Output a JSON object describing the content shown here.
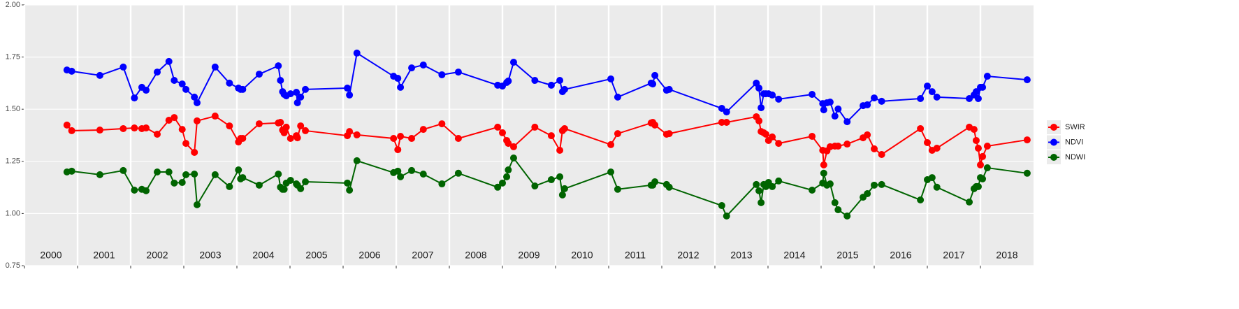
{
  "chart_data": {
    "type": "line",
    "legend": "right",
    "grid": true,
    "background": "#ebebeb",
    "x": [
      2000.8,
      2000.89,
      2001.42,
      2001.86,
      2002.07,
      2002.21,
      2002.29,
      2002.5,
      2002.72,
      2002.82,
      2002.97,
      2003.04,
      2003.2,
      2003.25,
      2003.59,
      2003.86,
      2004.03,
      2004.07,
      2004.11,
      2004.42,
      2004.78,
      2004.82,
      2004.86,
      2004.89,
      2004.93,
      2005.01,
      2005.12,
      2005.14,
      2005.2,
      2005.29,
      2006.08,
      2006.12,
      2006.26,
      2006.95,
      2007.03,
      2007.08,
      2007.29,
      2007.51,
      2007.86,
      2008.17,
      2008.91,
      2009.0,
      2009.08,
      2009.11,
      2009.21,
      2009.61,
      2009.92,
      2010.08,
      2010.13,
      2010.17,
      2011.04,
      2011.17,
      2011.8,
      2011.83,
      2011.87,
      2012.09,
      2012.14,
      2013.13,
      2013.22,
      2013.78,
      2013.83,
      2013.87,
      2013.92,
      2013.96,
      2014.01,
      2014.08,
      2014.2,
      2014.83,
      2015.03,
      2015.05,
      2015.11,
      2015.17,
      2015.26,
      2015.32,
      2015.49,
      2015.79,
      2015.87,
      2016.0,
      2016.14,
      2016.87,
      2017.0,
      2017.09,
      2017.18,
      2017.79,
      2017.88,
      2017.92,
      2017.96,
      2018.0,
      2018.04,
      2018.13,
      2018.88
    ],
    "series": [
      {
        "name": "SWIR",
        "color": "#ff0000",
        "values": [
          1.424,
          1.397,
          1.4,
          1.407,
          1.41,
          1.407,
          1.41,
          1.38,
          1.447,
          1.46,
          1.403,
          1.336,
          1.293,
          1.444,
          1.467,
          1.42,
          1.343,
          1.36,
          1.36,
          1.43,
          1.434,
          1.437,
          1.4,
          1.387,
          1.414,
          1.36,
          1.373,
          1.363,
          1.42,
          1.397,
          1.373,
          1.393,
          1.377,
          1.36,
          1.306,
          1.37,
          1.36,
          1.403,
          1.43,
          1.36,
          1.414,
          1.387,
          1.35,
          1.336,
          1.32,
          1.414,
          1.373,
          1.303,
          1.397,
          1.407,
          1.33,
          1.383,
          1.434,
          1.437,
          1.424,
          1.38,
          1.383,
          1.437,
          1.437,
          1.464,
          1.444,
          1.393,
          1.387,
          1.38,
          1.35,
          1.367,
          1.336,
          1.37,
          1.303,
          1.233,
          1.3,
          1.32,
          1.323,
          1.323,
          1.333,
          1.363,
          1.377,
          1.31,
          1.283,
          1.407,
          1.34,
          1.303,
          1.313,
          1.414,
          1.403,
          1.35,
          1.313,
          1.233,
          1.273,
          1.323,
          1.353
        ]
      },
      {
        "name": "NDVI",
        "color": "#0000ff",
        "values": [
          1.688,
          1.682,
          1.662,
          1.702,
          1.554,
          1.605,
          1.591,
          1.678,
          1.729,
          1.638,
          1.621,
          1.595,
          1.558,
          1.531,
          1.702,
          1.625,
          1.601,
          1.595,
          1.595,
          1.668,
          1.708,
          1.638,
          1.584,
          1.571,
          1.564,
          1.574,
          1.581,
          1.531,
          1.558,
          1.595,
          1.601,
          1.568,
          1.769,
          1.658,
          1.648,
          1.605,
          1.698,
          1.712,
          1.665,
          1.678,
          1.615,
          1.611,
          1.628,
          1.635,
          1.725,
          1.638,
          1.615,
          1.638,
          1.584,
          1.595,
          1.645,
          1.558,
          1.625,
          1.621,
          1.662,
          1.591,
          1.595,
          1.504,
          1.487,
          1.625,
          1.601,
          1.507,
          1.574,
          1.574,
          1.574,
          1.568,
          1.548,
          1.571,
          1.527,
          1.497,
          1.531,
          1.534,
          1.467,
          1.501,
          1.44,
          1.517,
          1.521,
          1.554,
          1.538,
          1.551,
          1.611,
          1.584,
          1.558,
          1.551,
          1.568,
          1.584,
          1.551,
          1.605,
          1.605,
          1.658,
          1.641
        ]
      },
      {
        "name": "NDWI",
        "color": "#006400",
        "values": [
          1.199,
          1.203,
          1.186,
          1.206,
          1.112,
          1.116,
          1.109,
          1.199,
          1.199,
          1.146,
          1.149,
          1.186,
          1.189,
          1.042,
          1.186,
          1.129,
          1.209,
          1.166,
          1.172,
          1.136,
          1.189,
          1.126,
          1.116,
          1.116,
          1.146,
          1.159,
          1.142,
          1.136,
          1.119,
          1.152,
          1.146,
          1.112,
          1.253,
          1.196,
          1.203,
          1.176,
          1.206,
          1.189,
          1.142,
          1.193,
          1.126,
          1.146,
          1.176,
          1.209,
          1.266,
          1.132,
          1.162,
          1.176,
          1.089,
          1.119,
          1.199,
          1.116,
          1.136,
          1.136,
          1.152,
          1.139,
          1.126,
          1.038,
          0.988,
          1.139,
          1.109,
          1.052,
          1.139,
          1.129,
          1.149,
          1.129,
          1.156,
          1.112,
          1.146,
          1.193,
          1.136,
          1.142,
          1.052,
          1.018,
          0.988,
          1.078,
          1.095,
          1.136,
          1.139,
          1.065,
          1.162,
          1.172,
          1.126,
          1.055,
          1.119,
          1.129,
          1.129,
          1.172,
          1.166,
          1.219,
          1.193
        ]
      }
    ],
    "xlim": [
      2000,
      2019
    ],
    "xticks": [
      2000,
      2001,
      2002,
      2003,
      2004,
      2005,
      2006,
      2007,
      2008,
      2009,
      2010,
      2011,
      2012,
      2013,
      2014,
      2015,
      2016,
      2017,
      2018
    ],
    "ylim": [
      0.75,
      2.0
    ],
    "yticks": [
      {
        "value": 0.75,
        "label": "0.75"
      },
      {
        "value": 1.0,
        "label": "1.00"
      },
      {
        "value": 1.25,
        "label": "1.25"
      },
      {
        "value": 1.5,
        "label": "1.50"
      },
      {
        "value": 1.75,
        "label": "1.75"
      },
      {
        "value": 2.0,
        "label": "2.00"
      }
    ]
  }
}
